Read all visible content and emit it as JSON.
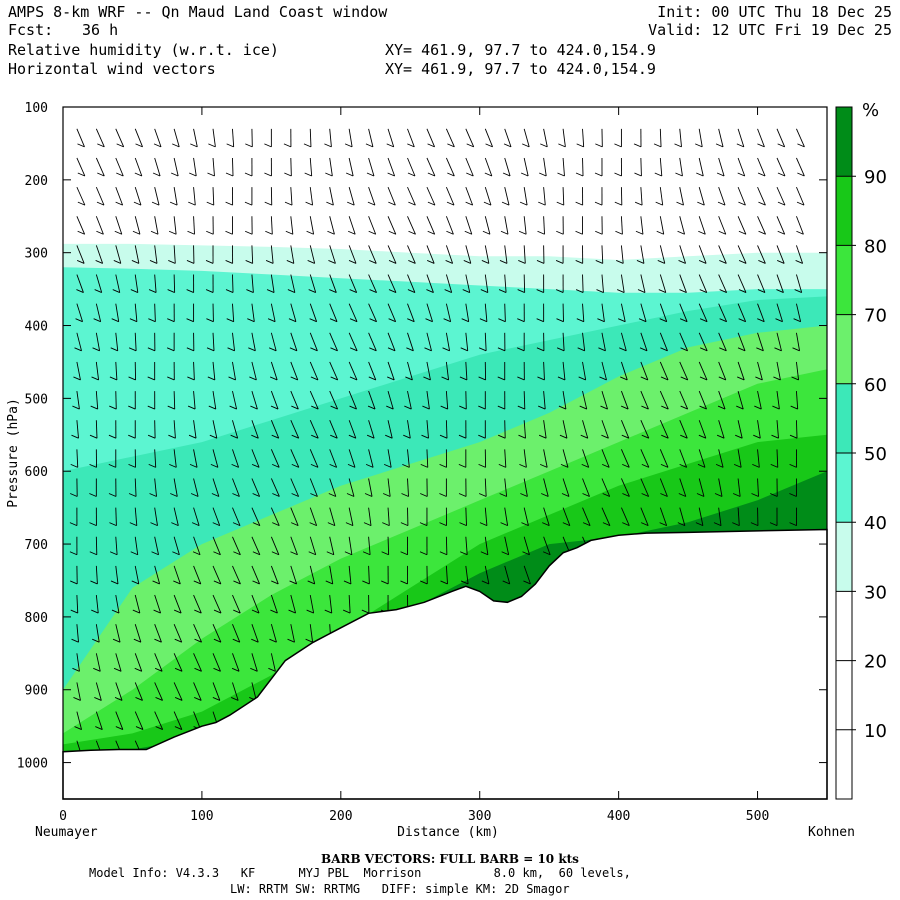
{
  "header": {
    "title": "AMPS 8-km WRF -- Qn Maud Land Coast window",
    "fcst_label": "Fcst:",
    "fcst_value": "36 h",
    "field1": "Relative humidity (w.r.t. ice)",
    "field2": "Horizontal wind vectors",
    "xy1": "XY= 461.9, 97.7 to 424.0,154.9",
    "xy2": "XY= 461.9, 97.7 to 424.0,154.9",
    "init": "Init: 00 UTC Thu 18 Dec 25",
    "valid": "Valid: 12 UTC Fri 19 Dec 25"
  },
  "colors": {
    "rh_30_40": "#c8fcec",
    "rh_40_50": "#5cf5d1",
    "rh_50_60": "#3ce8b8",
    "rh_60_70": "#6cf06c",
    "rh_70_80": "#3ce63c",
    "rh_80_90": "#18c818",
    "rh_90_100": "#008c18",
    "terrain": "#ffffff"
  },
  "chart_data": {
    "type": "heatmap",
    "title": "Relative humidity (w.r.t. ice)",
    "xlabel": "Distance (km)",
    "ylabel": "Pressure (hPa)",
    "xlim": [
      0,
      550
    ],
    "ylim": [
      1050,
      100
    ],
    "x_ticks": [
      0,
      100,
      200,
      300,
      400,
      500
    ],
    "y_ticks": [
      100,
      200,
      300,
      400,
      500,
      600,
      700,
      800,
      900,
      1000
    ],
    "x_start_label": "Neumayer",
    "x_end_label": "Kohnen",
    "colorbar_unit": "%",
    "colorbar_levels": [
      10,
      20,
      30,
      40,
      50,
      60,
      70,
      80,
      90
    ],
    "terrain_surface": {
      "x": [
        0,
        20,
        40,
        60,
        80,
        100,
        110,
        120,
        140,
        160,
        180,
        200,
        220,
        240,
        260,
        280,
        290,
        300,
        310,
        320,
        330,
        340,
        350,
        360,
        370,
        380,
        400,
        420,
        450,
        500,
        550
      ],
      "pressure": [
        985,
        983,
        982,
        982,
        965,
        950,
        945,
        935,
        910,
        860,
        835,
        815,
        795,
        790,
        780,
        765,
        758,
        765,
        778,
        780,
        772,
        755,
        730,
        712,
        705,
        695,
        688,
        685,
        684,
        682,
        680
      ]
    },
    "rh_bands": [
      {
        "level": "30-40",
        "top": [
          288,
          288,
          290,
          292,
          295,
          300,
          305,
          305,
          310,
          305,
          300,
          300
        ]
      },
      {
        "level": "40-50",
        "top": [
          320,
          322,
          325,
          330,
          335,
          340,
          345,
          350,
          355,
          355,
          350,
          350
        ]
      },
      {
        "level": "50-60",
        "top": [
          600,
          580,
          560,
          530,
          500,
          470,
          440,
          420,
          400,
          380,
          365,
          360
        ]
      },
      {
        "level": "60-70",
        "top": [
          900,
          760,
          700,
          660,
          620,
          590,
          560,
          520,
          470,
          430,
          410,
          400
        ]
      },
      {
        "level": "70-80",
        "top": [
          960,
          900,
          830,
          770,
          720,
          680,
          640,
          600,
          560,
          520,
          480,
          460
        ]
      },
      {
        "level": "80-90",
        "top": [
          975,
          960,
          930,
          880,
          820,
          760,
          700,
          660,
          620,
          590,
          560,
          550
        ]
      },
      {
        "level": "90-100",
        "top": [
          985,
          982,
          965,
          930,
          860,
          790,
          740,
          700,
          690,
          670,
          640,
          600
        ]
      }
    ],
    "rh_band_x": [
      0,
      50,
      100,
      150,
      200,
      250,
      300,
      350,
      400,
      450,
      500,
      550
    ]
  },
  "footer": {
    "barb_note": "BARB VECTORS:  FULL BARB = 10 kts",
    "model_line1": "Model Info: V4.3.3   KF      MYJ PBL  Morrison          8.0 km,  60 levels,",
    "model_line2": "LW: RRTM SW: RRTMG   DIFF: simple KM: 2D Smagor"
  }
}
